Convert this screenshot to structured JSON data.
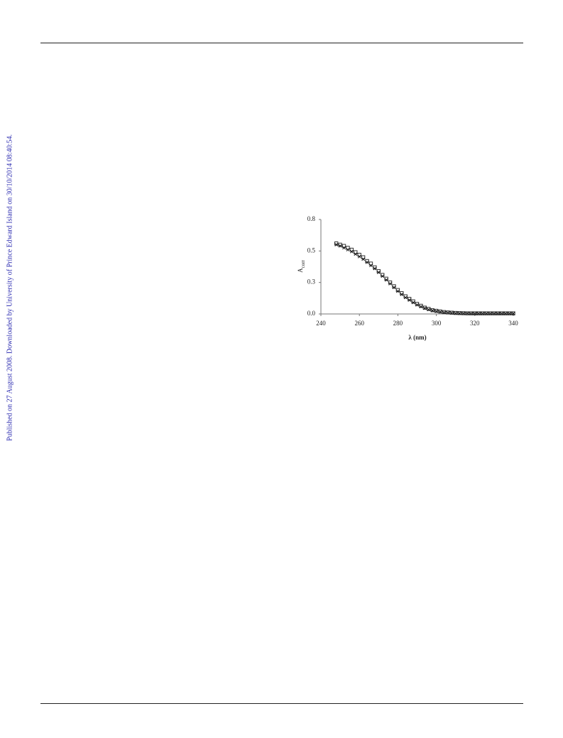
{
  "watermark": "Published on 27 August 2008. Downloaded by University of Prince Edward Island on 30/10/2014 08:40:54.",
  "chart_data": {
    "type": "scatter",
    "xlabel": "λ (nm)",
    "ylabel": {
      "text": "A",
      "subscript": "corr"
    },
    "xlim": [
      240,
      340
    ],
    "xticks": [
      240,
      260,
      280,
      300,
      320,
      340
    ],
    "ylim": [
      0,
      0.75
    ],
    "yticks": [
      {
        "value": 0,
        "label": "0.0"
      },
      {
        "value": 0.25,
        "label": "0.3"
      },
      {
        "value": 0.5,
        "label": "0.5"
      },
      {
        "value": 0.75,
        "label": "0.8"
      }
    ],
    "x": [
      248,
      250,
      252,
      254,
      256,
      258,
      260,
      262,
      264,
      266,
      268,
      270,
      272,
      274,
      276,
      278,
      280,
      282,
      284,
      286,
      288,
      290,
      292,
      294,
      296,
      298,
      300,
      302,
      304,
      306,
      308,
      310,
      312,
      314,
      316,
      318,
      320,
      322,
      324,
      326,
      328,
      330,
      332,
      334,
      336,
      338,
      340
    ],
    "series": [
      {
        "marker": "square",
        "color": "#333333",
        "values": [
          0.56,
          0.55,
          0.54,
          0.525,
          0.51,
          0.49,
          0.47,
          0.45,
          0.42,
          0.4,
          0.37,
          0.34,
          0.31,
          0.28,
          0.25,
          0.22,
          0.19,
          0.165,
          0.14,
          0.12,
          0.1,
          0.08,
          0.065,
          0.05,
          0.04,
          0.03,
          0.025,
          0.02,
          0.015,
          0.012,
          0.01,
          0.008,
          0.007,
          0.006,
          0.005,
          0.005,
          0.005,
          0.005,
          0.005,
          0.005,
          0.005,
          0.005,
          0.005,
          0.005,
          0.005,
          0.005,
          0.005
        ]
      },
      {
        "marker": "cross",
        "color": "#111111",
        "values": [
          0.55,
          0.54,
          0.525,
          0.51,
          0.495,
          0.475,
          0.455,
          0.435,
          0.41,
          0.385,
          0.36,
          0.33,
          0.3,
          0.27,
          0.24,
          0.21,
          0.18,
          0.155,
          0.13,
          0.11,
          0.09,
          0.072,
          0.058,
          0.045,
          0.035,
          0.027,
          0.021,
          0.016,
          0.012,
          0.01,
          0.008,
          0.006,
          0.005,
          0.004,
          0.004,
          0.003,
          0.003,
          0.003,
          0.003,
          0.003,
          0.003,
          0.003,
          0.003,
          0.003,
          0.003,
          0.003,
          0.003
        ]
      }
    ]
  }
}
